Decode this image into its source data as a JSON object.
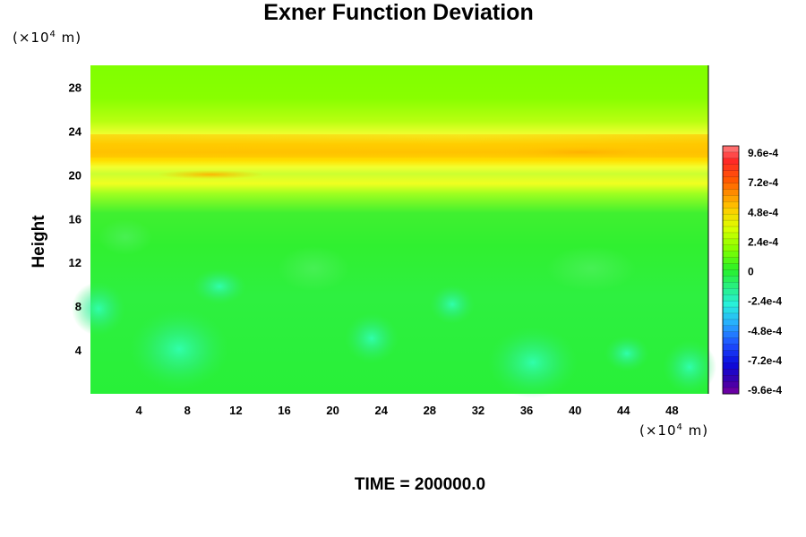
{
  "chart_data": {
    "type": "heatmap",
    "title": "Exner Function Deviation",
    "ylabel": "Height",
    "xlabel": "",
    "x_unit_prefix": "(×10",
    "x_unit_exp": "4",
    "x_unit_suffix": " m)",
    "y_unit_prefix": "(×10",
    "y_unit_exp": "4",
    "y_unit_suffix": " m)",
    "xlim": [
      0,
      51
    ],
    "ylim": [
      0,
      30
    ],
    "xticks": [
      4,
      8,
      12,
      16,
      20,
      24,
      28,
      32,
      36,
      40,
      44,
      48
    ],
    "yticks": [
      4,
      8,
      12,
      16,
      20,
      24,
      28
    ],
    "colorbar": {
      "range": [
        -0.00096,
        0.00096
      ],
      "labels": [
        "9.6e-4",
        "7.2e-4",
        "4.8e-4",
        "2.4e-4",
        "0",
        "-2.4e-4",
        "-4.8e-4",
        "-7.2e-4",
        "-9.6e-4"
      ]
    },
    "grid": false,
    "footer": "TIME = 200000.0"
  }
}
